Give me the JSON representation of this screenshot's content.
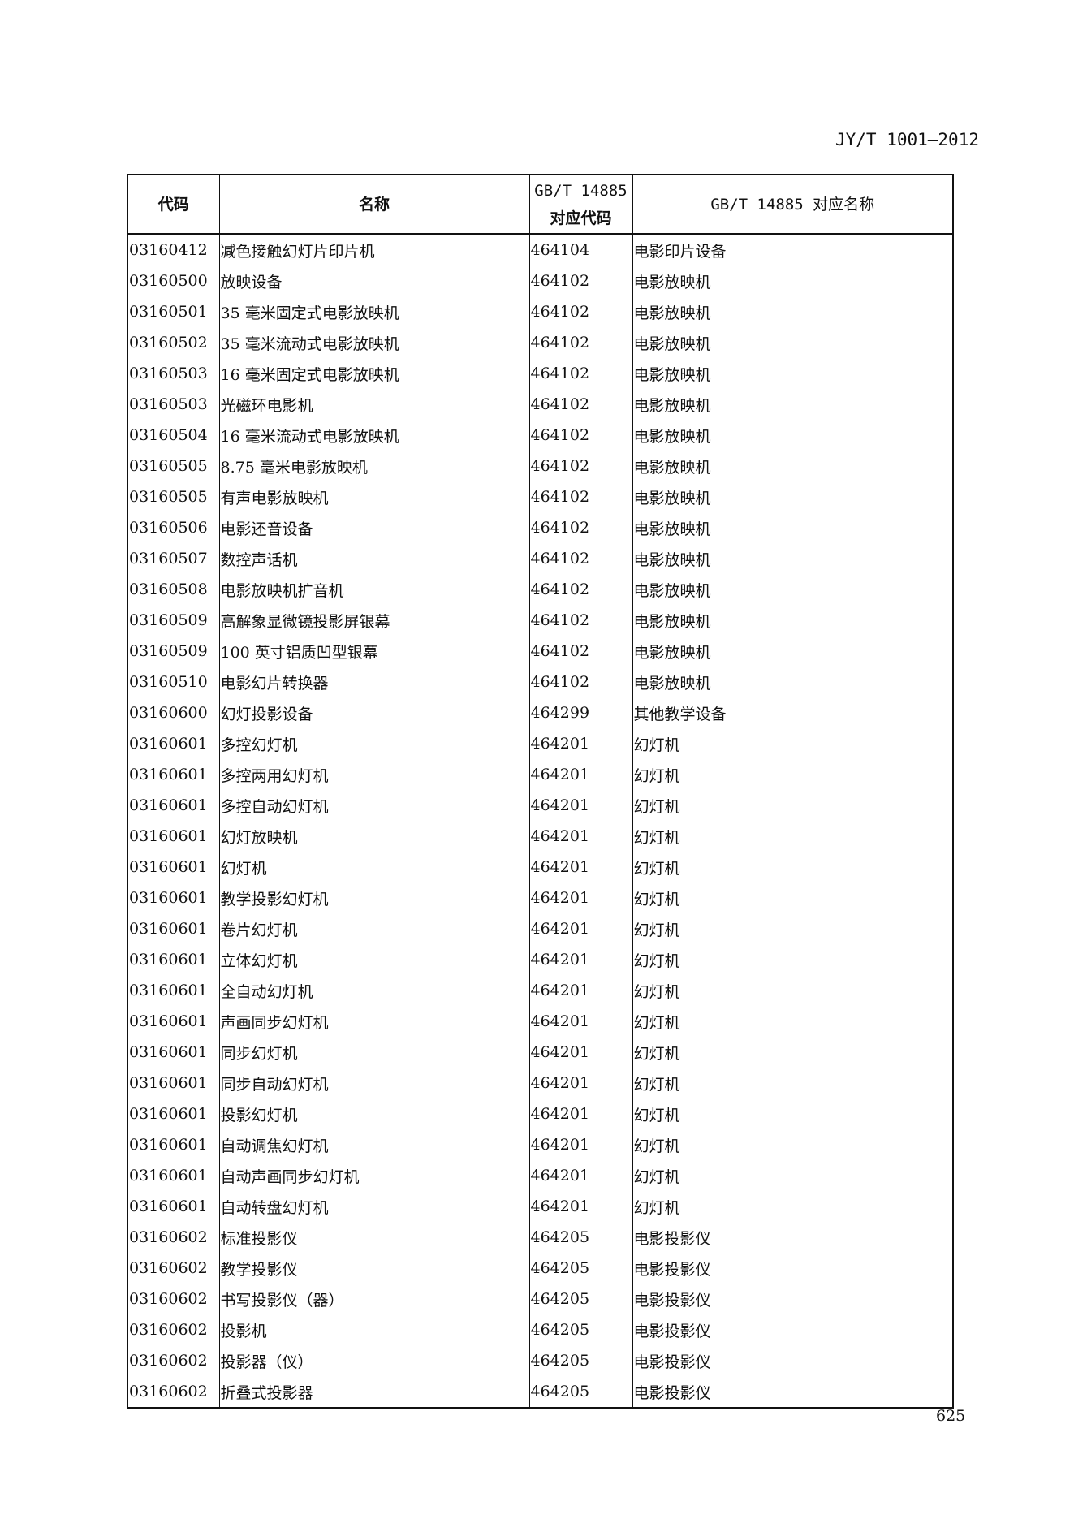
{
  "header": "JY/T 1001—2012",
  "columns": [
    "代码",
    "名称",
    "GB/T 14885 对应代码",
    "GB/T 14885 对应名称"
  ],
  "columns_lines": {
    "c2a": "GB/T 14885",
    "c2b": "对应代码"
  },
  "rows": [
    [
      "03160412",
      "减色接触幻灯片印片机",
      "464104",
      "电影印片设备"
    ],
    [
      "03160500",
      "放映设备",
      "464102",
      "电影放映机"
    ],
    [
      "03160501",
      "35 毫米固定式电影放映机",
      "464102",
      "电影放映机"
    ],
    [
      "03160502",
      "35 毫米流动式电影放映机",
      "464102",
      "电影放映机"
    ],
    [
      "03160503",
      "16 毫米固定式电影放映机",
      "464102",
      "电影放映机"
    ],
    [
      "03160503",
      "光磁环电影机",
      "464102",
      "电影放映机"
    ],
    [
      "03160504",
      "16 毫米流动式电影放映机",
      "464102",
      "电影放映机"
    ],
    [
      "03160505",
      "8.75 毫米电影放映机",
      "464102",
      "电影放映机"
    ],
    [
      "03160505",
      "有声电影放映机",
      "464102",
      "电影放映机"
    ],
    [
      "03160506",
      "电影还音设备",
      "464102",
      "电影放映机"
    ],
    [
      "03160507",
      "数控声话机",
      "464102",
      "电影放映机"
    ],
    [
      "03160508",
      "电影放映机扩音机",
      "464102",
      "电影放映机"
    ],
    [
      "03160509",
      "高解象显微镜投影屏银幕",
      "464102",
      "电影放映机"
    ],
    [
      "03160509",
      "100 英寸铝质凹型银幕",
      "464102",
      "电影放映机"
    ],
    [
      "03160510",
      "电影幻片转换器",
      "464102",
      "电影放映机"
    ],
    [
      "03160600",
      "幻灯投影设备",
      "464299",
      "其他教学设备"
    ],
    [
      "03160601",
      "多控幻灯机",
      "464201",
      "幻灯机"
    ],
    [
      "03160601",
      "多控两用幻灯机",
      "464201",
      "幻灯机"
    ],
    [
      "03160601",
      "多控自动幻灯机",
      "464201",
      "幻灯机"
    ],
    [
      "03160601",
      "幻灯放映机",
      "464201",
      "幻灯机"
    ],
    [
      "03160601",
      "幻灯机",
      "464201",
      "幻灯机"
    ],
    [
      "03160601",
      "教学投影幻灯机",
      "464201",
      "幻灯机"
    ],
    [
      "03160601",
      "卷片幻灯机",
      "464201",
      "幻灯机"
    ],
    [
      "03160601",
      "立体幻灯机",
      "464201",
      "幻灯机"
    ],
    [
      "03160601",
      "全自动幻灯机",
      "464201",
      "幻灯机"
    ],
    [
      "03160601",
      "声画同步幻灯机",
      "464201",
      "幻灯机"
    ],
    [
      "03160601",
      "同步幻灯机",
      "464201",
      "幻灯机"
    ],
    [
      "03160601",
      "同步自动幻灯机",
      "464201",
      "幻灯机"
    ],
    [
      "03160601",
      "投影幻灯机",
      "464201",
      "幻灯机"
    ],
    [
      "03160601",
      "自动调焦幻灯机",
      "464201",
      "幻灯机"
    ],
    [
      "03160601",
      "自动声画同步幻灯机",
      "464201",
      "幻灯机"
    ],
    [
      "03160601",
      "自动转盘幻灯机",
      "464201",
      "幻灯机"
    ],
    [
      "03160602",
      "标准投影仪",
      "464205",
      "电影投影仪"
    ],
    [
      "03160602",
      "教学投影仪",
      "464205",
      "电影投影仪"
    ],
    [
      "03160602",
      "书写投影仪（器）",
      "464205",
      "电影投影仪"
    ],
    [
      "03160602",
      "投影机",
      "464205",
      "电影投影仪"
    ],
    [
      "03160602",
      "投影器（仪）",
      "464205",
      "电影投影仪"
    ],
    [
      "03160602",
      "折叠式投影器",
      "464205",
      "电影投影仪"
    ]
  ],
  "page_number": "625"
}
